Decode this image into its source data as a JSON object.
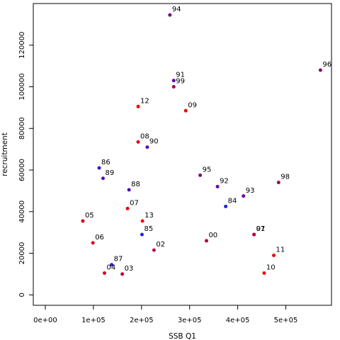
{
  "chart_data": {
    "type": "scatter",
    "title": "",
    "xlabel": "SSB Q1",
    "ylabel": "recruitment",
    "xlim": [
      -25000,
      595000
    ],
    "ylim": [
      -5000,
      140000
    ],
    "x_ticks": [
      {
        "value": 0,
        "label": "0e+00"
      },
      {
        "value": 100000,
        "label": "1e+05"
      },
      {
        "value": 200000,
        "label": "2e+05"
      },
      {
        "value": 300000,
        "label": "3e+05"
      },
      {
        "value": 400000,
        "label": "4e+05"
      },
      {
        "value": 500000,
        "label": "5e+05"
      }
    ],
    "y_ticks": [
      {
        "value": 0,
        "label": "0"
      },
      {
        "value": 20000,
        "label": "20000"
      },
      {
        "value": 40000,
        "label": "40000"
      },
      {
        "value": 60000,
        "label": "60000"
      },
      {
        "value": 80000,
        "label": "80000"
      },
      {
        "value": 100000,
        "label": "100000"
      },
      {
        "value": 120000,
        "label": "120000"
      }
    ],
    "grid": false,
    "legend": "none",
    "points": [
      {
        "label": "84",
        "x": 375000,
        "y": 42500,
        "color": "#2222dd"
      },
      {
        "label": "85",
        "x": 201000,
        "y": 29000,
        "color": "#2a1fd6"
      },
      {
        "label": "86",
        "x": 112000,
        "y": 61000,
        "color": "#3318cc"
      },
      {
        "label": "87",
        "x": 138000,
        "y": 14500,
        "color": "#3c16c4"
      },
      {
        "label": "88",
        "x": 174000,
        "y": 50500,
        "color": "#4414ba"
      },
      {
        "label": "89",
        "x": 120000,
        "y": 56000,
        "color": "#4d12b2"
      },
      {
        "label": "90",
        "x": 212000,
        "y": 71000,
        "color": "#5510a8"
      },
      {
        "label": "91",
        "x": 267000,
        "y": 103000,
        "color": "#5e0ea0"
      },
      {
        "label": "92",
        "x": 358000,
        "y": 52000,
        "color": "#660c96"
      },
      {
        "label": "93",
        "x": 412000,
        "y": 47500,
        "color": "#6f0a8e"
      },
      {
        "label": "94",
        "x": 259000,
        "y": 134500,
        "color": "#770984"
      },
      {
        "label": "95",
        "x": 322000,
        "y": 57500,
        "color": "#80087c"
      },
      {
        "label": "96",
        "x": 572000,
        "y": 108000,
        "color": "#880772"
      },
      {
        "label": "97",
        "x": 434000,
        "y": 29000,
        "color": "#91066a"
      },
      {
        "label": "98",
        "x": 485000,
        "y": 54000,
        "color": "#990560"
      },
      {
        "label": "99",
        "x": 267000,
        "y": 100000,
        "color": "#a20458"
      },
      {
        "label": "00",
        "x": 335000,
        "y": 26000,
        "color": "#aa034e"
      },
      {
        "label": "01",
        "x": 434000,
        "y": 29000,
        "color": "#b30346"
      },
      {
        "label": "02",
        "x": 226000,
        "y": 21500,
        "color": "#bb023c"
      },
      {
        "label": "03",
        "x": 160000,
        "y": 10000,
        "color": "#c40234"
      },
      {
        "label": "04",
        "x": 123000,
        "y": 10500,
        "color": "#cc012a"
      },
      {
        "label": "05",
        "x": 78000,
        "y": 35500,
        "color": "#d50122"
      },
      {
        "label": "06",
        "x": 99000,
        "y": 25000,
        "color": "#dd0118"
      },
      {
        "label": "07",
        "x": 171000,
        "y": 41500,
        "color": "#e60010"
      },
      {
        "label": "08",
        "x": 193000,
        "y": 73500,
        "color": "#ee0008"
      },
      {
        "label": "09",
        "x": 292000,
        "y": 88500,
        "color": "#f40004"
      },
      {
        "label": "10",
        "x": 455000,
        "y": 10500,
        "color": "#f80002"
      },
      {
        "label": "11",
        "x": 475000,
        "y": 19000,
        "color": "#fb0001"
      },
      {
        "label": "12",
        "x": 193000,
        "y": 90500,
        "color": "#fd0000"
      },
      {
        "label": "13",
        "x": 202000,
        "y": 35500,
        "color": "#ff0000"
      }
    ]
  }
}
